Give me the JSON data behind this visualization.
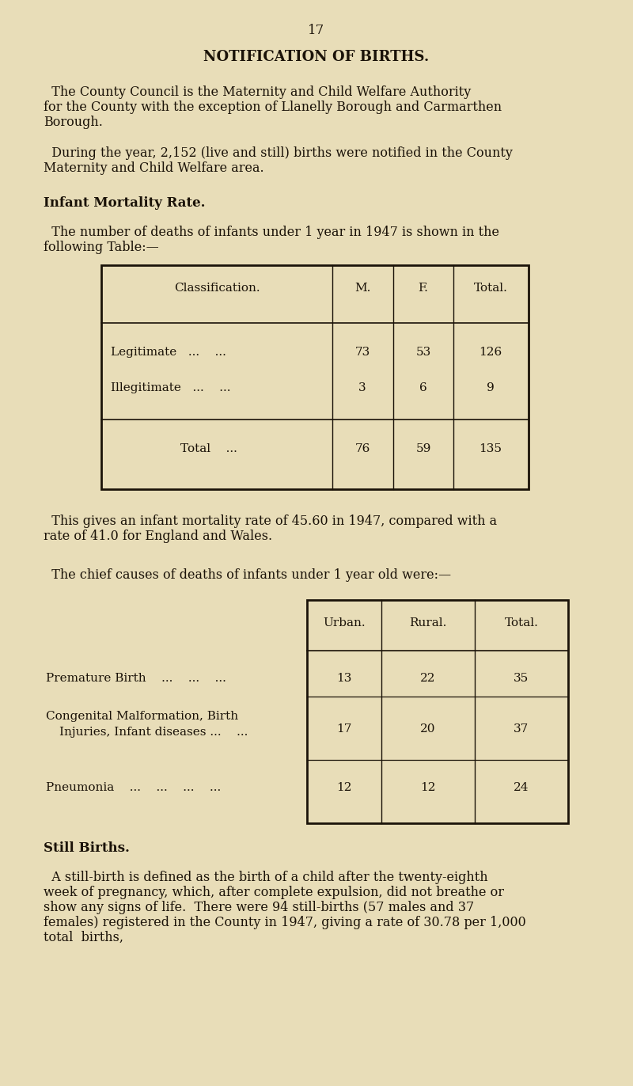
{
  "bg_color": "#e8ddb8",
  "text_color": "#1a1208",
  "page_number": "17",
  "title": "NOTIFICATION OF BIRTHS.",
  "para1_line1": "  The County Council is the Maternity and Child Welfare Authority",
  "para1_line2": "for the County with the exception of Llanelly Borough and Carmarthen",
  "para1_line3": "Borough.",
  "para2_line1": "  During the year, 2,152 (live and still) births were notified in the County",
  "para2_line2": "Maternity and Child Welfare area.",
  "section1_title": "Infant Mortality Rate.",
  "section1_intro1": "  The number of deaths of infants under 1 year in 1947 is shown in the",
  "section1_intro2": "following Table:—",
  "para3_line1": "  This gives an infant mortality rate of 45.60 in 1947, compared with a",
  "para3_line2": "rate of 41.0 for England and Wales.",
  "para4": "  The chief causes of deaths of infants under 1 year old were:—",
  "section2_title": "Still Births.",
  "section2_line1": "  A still-birth is defined as the birth of a child after the twenty-eighth",
  "section2_line2": "week of pregnancy, which, after complete expulsion, did not breathe or",
  "section2_line3": "show any signs of life.  There were 94 still-births (57 males and 37",
  "section2_line4": "females) registered in the County in 1947, giving a rate of 30.78 per 1,000",
  "section2_line5": "total  births,"
}
